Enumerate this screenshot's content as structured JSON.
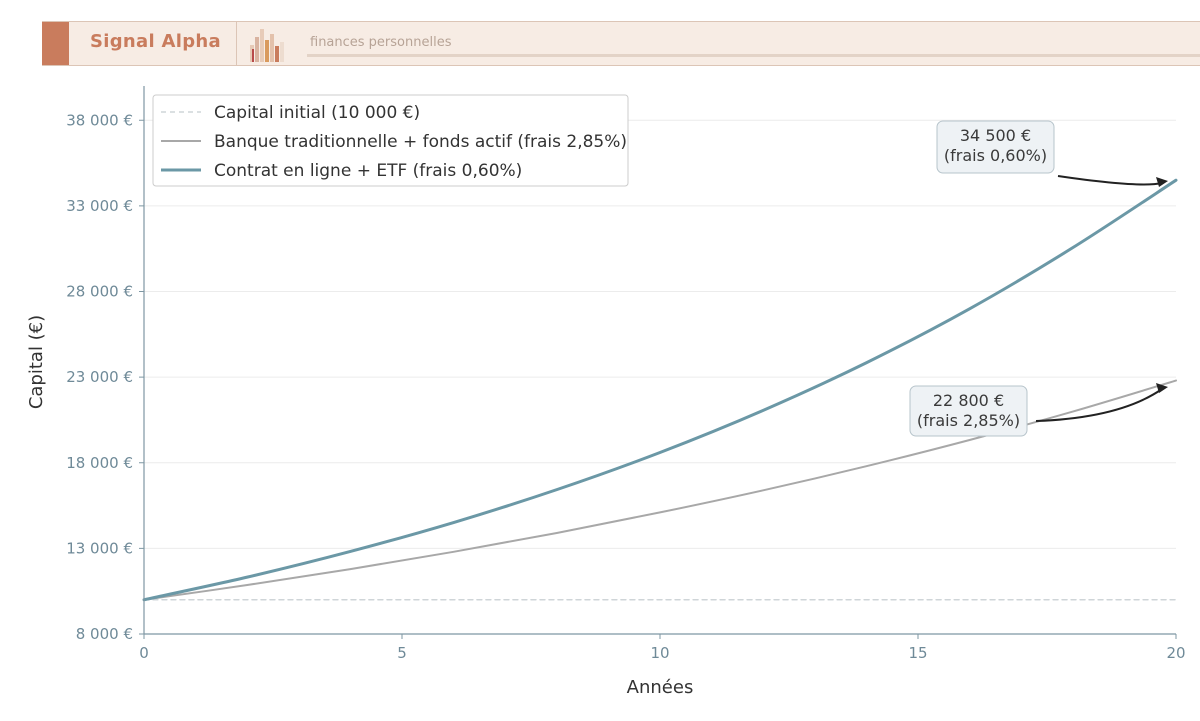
{
  "header": {
    "brand": "Signal Alpha",
    "tagline": "finances personnelles"
  },
  "colors": {
    "brand": "#c97c5d",
    "etf_line": "#6b98a6",
    "bank_line": "#a8a8a8",
    "initial_line": "#cfd5d8",
    "axis": "#7e97a3"
  },
  "chart_data": {
    "type": "line",
    "xlabel": "Années",
    "ylabel": "Capital (€)",
    "xlim": [
      0,
      20
    ],
    "ylim": [
      8000,
      40000
    ],
    "x_ticks": [
      0,
      5,
      10,
      15,
      20
    ],
    "x_tick_labels": [
      "0",
      "5",
      "10",
      "15",
      "20"
    ],
    "y_ticks": [
      8000,
      13000,
      18000,
      23000,
      28000,
      33000,
      38000
    ],
    "y_tick_labels": [
      "8 000 €",
      "13 000 €",
      "18 000 €",
      "23 000 €",
      "28 000 €",
      "33 000 €",
      "38 000 €"
    ],
    "grid": "horizontal",
    "legend_position": "top-left",
    "series": [
      {
        "name": "Capital initial (10 000 €)",
        "style": "dashed",
        "x": [
          0,
          20
        ],
        "values": [
          10000,
          10000
        ]
      },
      {
        "name": "Banque traditionnelle + fonds actif (frais 2,85%)",
        "style": "solid",
        "x": [
          0,
          2,
          4,
          6,
          8,
          10,
          12,
          14,
          16,
          18,
          20
        ],
        "values": [
          10000,
          10860,
          11790,
          12800,
          13900,
          15100,
          16390,
          17800,
          19330,
          20990,
          22800
        ]
      },
      {
        "name": "Contrat en ligne + ETF (frais 0,60%)",
        "style": "solid",
        "x": [
          0,
          2,
          4,
          6,
          8,
          10,
          12,
          14,
          16,
          18,
          20
        ],
        "values": [
          10000,
          11320,
          12820,
          14510,
          16430,
          18600,
          21060,
          23840,
          26990,
          30560,
          34500
        ]
      }
    ],
    "annotations": [
      {
        "line1": "34 500 €",
        "line2": "(frais 0,60%)",
        "x": 20,
        "y": 34500
      },
      {
        "line1": "22 800 €",
        "line2": "(frais 2,85%)",
        "x": 20,
        "y": 22800
      }
    ]
  }
}
